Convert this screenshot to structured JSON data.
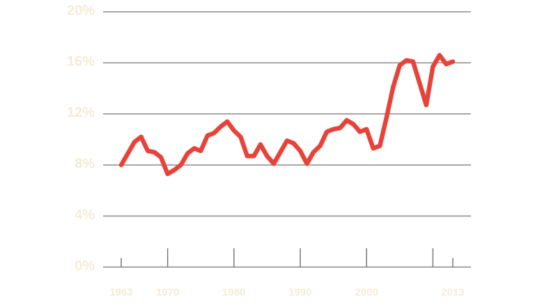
{
  "chart_data": {
    "type": "line",
    "x": [
      1963,
      1964,
      1965,
      1966,
      1967,
      1968,
      1969,
      1970,
      1971,
      1972,
      1973,
      1974,
      1975,
      1976,
      1977,
      1978,
      1979,
      1980,
      1981,
      1982,
      1983,
      1984,
      1985,
      1986,
      1987,
      1988,
      1989,
      1990,
      1991,
      1992,
      1993,
      1994,
      1995,
      1996,
      1997,
      1998,
      1999,
      2000,
      2001,
      2002,
      2003,
      2004,
      2005,
      2006,
      2007,
      2008,
      2009,
      2010,
      2011,
      2012,
      2013
    ],
    "series": [
      {
        "color": "#e8433a",
        "values": [
          8.0,
          8.9,
          9.8,
          10.2,
          9.1,
          9.0,
          8.6,
          7.3,
          7.6,
          8.0,
          8.9,
          9.3,
          9.1,
          10.3,
          10.5,
          11.0,
          11.4,
          10.7,
          10.2,
          8.7,
          8.7,
          9.6,
          8.7,
          8.1,
          9.0,
          9.9,
          9.7,
          9.1,
          8.1,
          9.0,
          9.5,
          10.6,
          10.8,
          10.9,
          11.5,
          11.2,
          10.6,
          10.8,
          9.3,
          9.5,
          11.7,
          14.1,
          15.8,
          16.2,
          16.1,
          14.4,
          12.7,
          15.7,
          16.6,
          15.9,
          16.1
        ]
      }
    ],
    "xlim": [
      1963,
      2013
    ],
    "xticks": [
      1963,
      1970,
      1980,
      1990,
      2000,
      2013
    ],
    "x_minor_ticks": [
      2010
    ],
    "ylim": [
      0,
      20
    ],
    "yticks": [
      {
        "value": 0,
        "label": "0%"
      },
      {
        "value": 4,
        "label": "4%"
      },
      {
        "value": 8,
        "label": "8%"
      },
      {
        "value": 12,
        "label": "12%"
      },
      {
        "value": 16,
        "label": "16%"
      },
      {
        "value": 20,
        "label": "20%"
      }
    ],
    "grid": true
  }
}
